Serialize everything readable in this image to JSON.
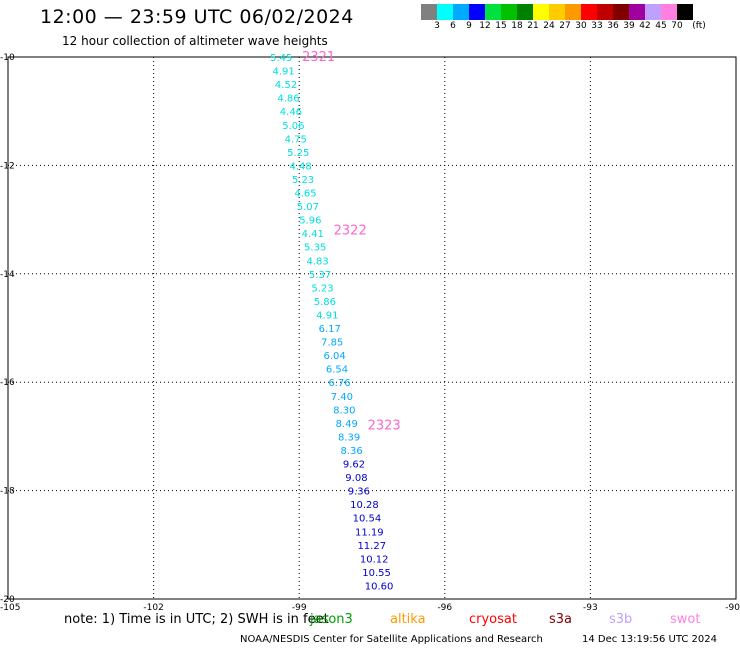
{
  "title": "12:00 — 23:59 UTC 06/02/2024",
  "subtitle": "12 hour collection of altimeter wave heights",
  "colorbar": {
    "colors": [
      "#808080",
      "#00ffff",
      "#00aaff",
      "#0000ff",
      "#00e040",
      "#00c000",
      "#008000",
      "#ffff00",
      "#ffcc00",
      "#ff9900",
      "#ff0000",
      "#c00000",
      "#800000",
      "#a000a0",
      "#c0a0ff",
      "#ff80e0",
      "#000000"
    ],
    "labels": [
      "3",
      "6",
      "9",
      "12",
      "15",
      "18",
      "21",
      "24",
      "27",
      "30",
      "33",
      "36",
      "39",
      "42",
      "45",
      "70"
    ],
    "unit": "(ft)"
  },
  "axes": {
    "lat_ticks": [
      "-10",
      "-12",
      "-14",
      "-16",
      "-18",
      "-20"
    ],
    "lon_ticks": [
      "-105",
      "-102",
      "-99",
      "-96",
      "-93",
      "-90"
    ],
    "lat_range": [
      -20,
      -10
    ],
    "lon_range": [
      -105,
      -90
    ]
  },
  "track": {
    "labels": [
      "2321",
      "2322",
      "2323"
    ],
    "label_color": "#ff66cc",
    "label_lats": [
      -10.0,
      -13.2,
      -16.8
    ],
    "points": [
      {
        "v": "5.45",
        "lat": -10.0,
        "lon": -99.6,
        "c": "#00e0e0"
      },
      {
        "v": "4.91",
        "lat": -10.25,
        "lon": -99.55,
        "c": "#00e0e0"
      },
      {
        "v": "4.52",
        "lat": -10.5,
        "lon": -99.5,
        "c": "#00e0e0"
      },
      {
        "v": "4.86",
        "lat": -10.75,
        "lon": -99.45,
        "c": "#00e0e0"
      },
      {
        "v": "4.46",
        "lat": -11.0,
        "lon": -99.4,
        "c": "#00e0e0"
      },
      {
        "v": "5.06",
        "lat": -11.25,
        "lon": -99.35,
        "c": "#00e0e0"
      },
      {
        "v": "4.75",
        "lat": -11.5,
        "lon": -99.3,
        "c": "#00e0e0"
      },
      {
        "v": "5.25",
        "lat": -11.75,
        "lon": -99.25,
        "c": "#00e0e0"
      },
      {
        "v": "4.48",
        "lat": -12.0,
        "lon": -99.2,
        "c": "#00e0e0"
      },
      {
        "v": "5.23",
        "lat": -12.25,
        "lon": -99.15,
        "c": "#00e0e0"
      },
      {
        "v": "4.65",
        "lat": -12.5,
        "lon": -99.1,
        "c": "#00e0e0"
      },
      {
        "v": "5.07",
        "lat": -12.75,
        "lon": -99.05,
        "c": "#00e0e0"
      },
      {
        "v": "5.96",
        "lat": -13.0,
        "lon": -99.0,
        "c": "#00e0e0"
      },
      {
        "v": "4.41",
        "lat": -13.25,
        "lon": -98.95,
        "c": "#00e0e0"
      },
      {
        "v": "5.35",
        "lat": -13.5,
        "lon": -98.9,
        "c": "#00e0e0"
      },
      {
        "v": "4.83",
        "lat": -13.75,
        "lon": -98.85,
        "c": "#00e0e0"
      },
      {
        "v": "5.37",
        "lat": -14.0,
        "lon": -98.8,
        "c": "#00e0e0"
      },
      {
        "v": "5.23",
        "lat": -14.25,
        "lon": -98.75,
        "c": "#00e0e0"
      },
      {
        "v": "5.86",
        "lat": -14.5,
        "lon": -98.7,
        "c": "#00e0e0"
      },
      {
        "v": "4.91",
        "lat": -14.75,
        "lon": -98.65,
        "c": "#00e0e0"
      },
      {
        "v": "6.17",
        "lat": -15.0,
        "lon": -98.6,
        "c": "#00aaff"
      },
      {
        "v": "7.85",
        "lat": -15.25,
        "lon": -98.55,
        "c": "#00aaff"
      },
      {
        "v": "6.04",
        "lat": -15.5,
        "lon": -98.5,
        "c": "#00aaff"
      },
      {
        "v": "6.54",
        "lat": -15.75,
        "lon": -98.45,
        "c": "#00aaff"
      },
      {
        "v": "6.76",
        "lat": -16.0,
        "lon": -98.4,
        "c": "#00aaff"
      },
      {
        "v": "7.40",
        "lat": -16.25,
        "lon": -98.35,
        "c": "#00aaff"
      },
      {
        "v": "8.30",
        "lat": -16.5,
        "lon": -98.3,
        "c": "#00aaff"
      },
      {
        "v": "8.49",
        "lat": -16.75,
        "lon": -98.25,
        "c": "#00aaff"
      },
      {
        "v": "8.39",
        "lat": -17.0,
        "lon": -98.2,
        "c": "#00aaff"
      },
      {
        "v": "8.36",
        "lat": -17.25,
        "lon": -98.15,
        "c": "#00aaff"
      },
      {
        "v": "9.62",
        "lat": -17.5,
        "lon": -98.1,
        "c": "#0000cc"
      },
      {
        "v": "9.08",
        "lat": -17.75,
        "lon": -98.05,
        "c": "#0000cc"
      },
      {
        "v": "9.36",
        "lat": -18.0,
        "lon": -98.0,
        "c": "#0000cc"
      },
      {
        "v": "10.28",
        "lat": -18.25,
        "lon": -97.95,
        "c": "#0000cc"
      },
      {
        "v": "10.54",
        "lat": -18.5,
        "lon": -97.9,
        "c": "#0000cc"
      },
      {
        "v": "11.19",
        "lat": -18.75,
        "lon": -97.85,
        "c": "#0000cc"
      },
      {
        "v": "11.27",
        "lat": -19.0,
        "lon": -97.8,
        "c": "#0000cc"
      },
      {
        "v": "10.12",
        "lat": -19.25,
        "lon": -97.75,
        "c": "#0000cc"
      },
      {
        "v": "10.55",
        "lat": -19.5,
        "lon": -97.7,
        "c": "#0000cc"
      },
      {
        "v": "10.60",
        "lat": -19.75,
        "lon": -97.65,
        "c": "#0000cc"
      }
    ]
  },
  "note": {
    "text": "note:  1) Time is in UTC;  2) SWH is in feet",
    "satellites": [
      {
        "name": "jason3",
        "color": "#00a000"
      },
      {
        "name": "altika",
        "color": "#ff9900"
      },
      {
        "name": "cryosat",
        "color": "#ff0000"
      },
      {
        "name": "s3a",
        "color": "#800000"
      },
      {
        "name": "s3b",
        "color": "#c0a0ff"
      },
      {
        "name": "swot",
        "color": "#ff80e0"
      }
    ]
  },
  "footer": {
    "center": "NOAA/NESDIS Center for Satellite Applications and Research",
    "timestamp": "14 Dec 13:19:56 UTC 2024"
  }
}
